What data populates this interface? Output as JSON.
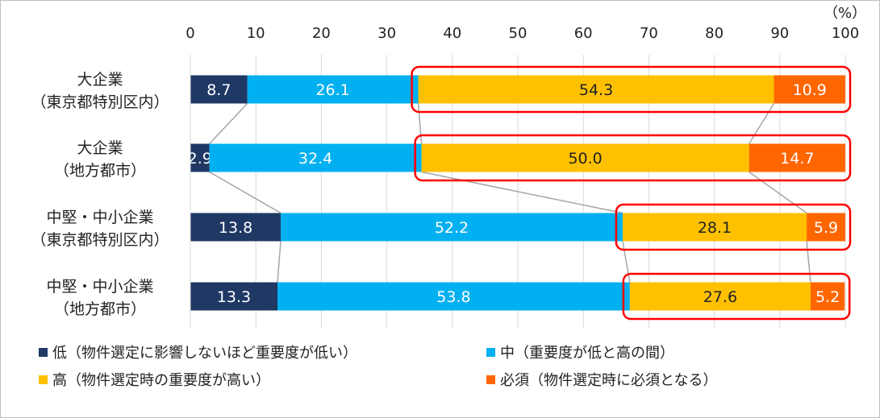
{
  "chart_data": {
    "type": "bar",
    "orientation": "horizontal",
    "stacked": true,
    "unit_label": "（%）",
    "xlim": [
      0,
      100
    ],
    "xticks": [
      0,
      10,
      20,
      30,
      40,
      50,
      60,
      70,
      80,
      90,
      100
    ],
    "grid": true,
    "legend_placement": "bottom",
    "categories": [
      [
        "大企業",
        "（東京都特別区内）"
      ],
      [
        "大企業",
        "（地方都市）"
      ],
      [
        "中堅・中小企業",
        "（東京都特別区内）"
      ],
      [
        "中堅・中小企業",
        "（地方都市）"
      ]
    ],
    "series": [
      {
        "name": "低（物件選定に影響しないほど重要度が低い）",
        "color": "#1f3864",
        "label_color": "#ffffff",
        "values": [
          8.7,
          2.9,
          13.8,
          13.3
        ]
      },
      {
        "name": "中（重要度が低と高の間）",
        "color": "#00b0f0",
        "label_color": "#ffffff",
        "values": [
          26.1,
          32.4,
          52.2,
          53.8
        ]
      },
      {
        "name": "高（物件選定時の重要度が高い）",
        "color": "#ffc000",
        "label_color": "#222222",
        "values": [
          54.3,
          50.0,
          28.1,
          27.6
        ]
      },
      {
        "name": "必須（物件選定時に必須となる）",
        "color": "#ff6600",
        "label_color": "#ffffff",
        "values": [
          10.9,
          14.7,
          5.9,
          5.2
        ]
      }
    ],
    "value_labels": [
      [
        "8.7",
        "26.1",
        "54.3",
        "10.9"
      ],
      [
        "2.9",
        "32.4",
        "50.0",
        "14.7"
      ],
      [
        "13.8",
        "52.2",
        "28.1",
        "5.9"
      ],
      [
        "13.3",
        "53.8",
        "27.6",
        "5.2"
      ]
    ],
    "highlight": {
      "description": "red rounded boxes around 高 + 必須 segments",
      "color": "#ff0000"
    },
    "connector_color": "#a6a6a6"
  }
}
